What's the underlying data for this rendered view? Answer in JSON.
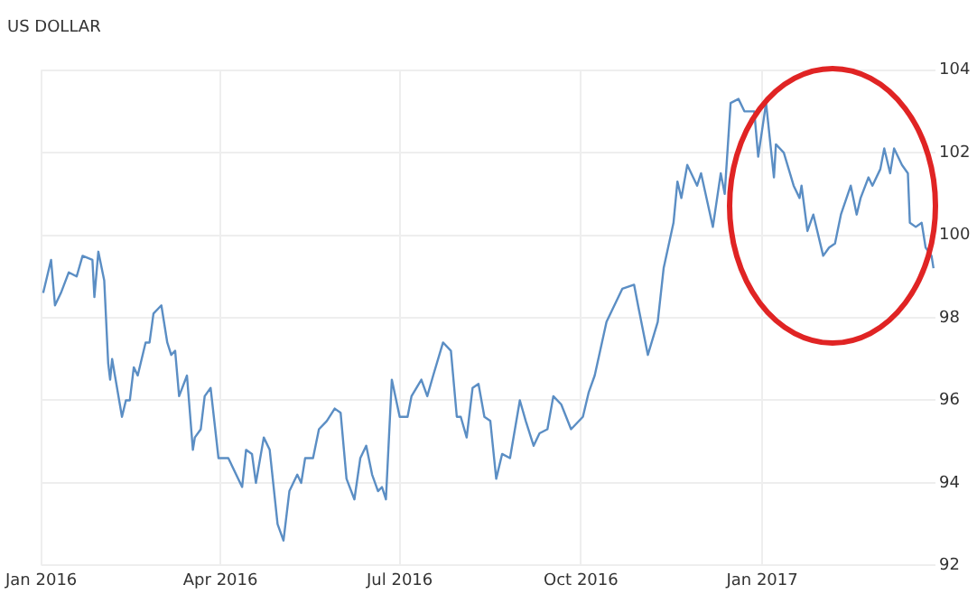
{
  "chart_data": {
    "type": "line",
    "title": "US DOLLAR",
    "x": [
      "2016-01-02",
      "2016-01-06",
      "2016-01-08",
      "2016-01-11",
      "2016-01-15",
      "2016-01-19",
      "2016-01-22",
      "2016-01-27",
      "2016-01-28",
      "2016-01-30",
      "2016-02-02",
      "2016-02-04",
      "2016-02-05",
      "2016-02-06",
      "2016-02-11",
      "2016-02-13",
      "2016-02-15",
      "2016-02-17",
      "2016-02-19",
      "2016-02-23",
      "2016-02-25",
      "2016-02-27",
      "2016-03-02",
      "2016-03-05",
      "2016-03-07",
      "2016-03-09",
      "2016-03-11",
      "2016-03-15",
      "2016-03-18",
      "2016-03-19",
      "2016-03-22",
      "2016-03-24",
      "2016-03-27",
      "2016-03-31",
      "2016-04-05",
      "2016-04-12",
      "2016-04-14",
      "2016-04-17",
      "2016-04-19",
      "2016-04-23",
      "2016-04-26",
      "2016-04-30",
      "2016-05-03",
      "2016-05-06",
      "2016-05-10",
      "2016-05-12",
      "2016-05-14",
      "2016-05-18",
      "2016-05-21",
      "2016-05-25",
      "2016-05-29",
      "2016-06-01",
      "2016-06-04",
      "2016-06-08",
      "2016-06-11",
      "2016-06-14",
      "2016-06-17",
      "2016-06-20",
      "2016-06-22",
      "2016-06-24",
      "2016-06-27",
      "2016-07-01",
      "2016-07-05",
      "2016-07-07",
      "2016-07-12",
      "2016-07-15",
      "2016-07-18",
      "2016-07-23",
      "2016-07-27",
      "2016-07-30",
      "2016-08-01",
      "2016-08-04",
      "2016-08-07",
      "2016-08-10",
      "2016-08-13",
      "2016-08-16",
      "2016-08-19",
      "2016-08-22",
      "2016-08-26",
      "2016-08-31",
      "2016-09-03",
      "2016-09-07",
      "2016-09-10",
      "2016-09-14",
      "2016-09-17",
      "2016-09-21",
      "2016-09-26",
      "2016-10-02",
      "2016-10-05",
      "2016-10-08",
      "2016-10-14",
      "2016-10-22",
      "2016-10-28",
      "2016-10-30",
      "2016-11-04",
      "2016-11-09",
      "2016-11-12",
      "2016-11-17",
      "2016-11-19",
      "2016-11-21",
      "2016-11-24",
      "2016-11-29",
      "2016-12-01",
      "2016-12-07",
      "2016-12-11",
      "2016-12-13",
      "2016-12-16",
      "2016-12-20",
      "2016-12-23",
      "2016-12-28",
      "2016-12-30",
      "2017-01-03",
      "2017-01-07",
      "2017-01-08",
      "2017-01-12",
      "2017-01-17",
      "2017-01-20",
      "2017-01-21",
      "2017-01-24",
      "2017-01-27",
      "2017-02-01",
      "2017-02-04",
      "2017-02-07",
      "2017-02-10",
      "2017-02-15",
      "2017-02-18",
      "2017-02-20",
      "2017-02-24",
      "2017-02-26",
      "2017-03-02",
      "2017-03-04",
      "2017-03-07",
      "2017-03-09",
      "2017-03-13",
      "2017-03-16",
      "2017-03-17",
      "2017-03-20",
      "2017-03-23",
      "2017-03-25",
      "2017-03-28",
      "2017-03-29"
    ],
    "series": [
      {
        "color": "#5b8ec4",
        "values": [
          98.6,
          99.4,
          98.3,
          98.6,
          99.1,
          99.0,
          99.5,
          99.4,
          98.5,
          99.6,
          98.9,
          96.9,
          96.5,
          97.0,
          95.6,
          96.0,
          96.0,
          96.8,
          96.6,
          97.4,
          97.4,
          98.1,
          98.3,
          97.4,
          97.1,
          97.2,
          96.1,
          96.6,
          94.8,
          95.1,
          95.3,
          96.1,
          96.3,
          94.6,
          94.6,
          93.9,
          94.8,
          94.7,
          94.0,
          95.1,
          94.8,
          93.0,
          92.6,
          93.8,
          94.2,
          94.0,
          94.6,
          94.6,
          95.3,
          95.5,
          95.8,
          95.7,
          94.1,
          93.6,
          94.6,
          94.9,
          94.2,
          93.8,
          93.9,
          93.6,
          96.5,
          95.6,
          95.6,
          96.1,
          96.5,
          96.1,
          96.6,
          97.4,
          97.2,
          95.6,
          95.6,
          95.1,
          96.3,
          96.4,
          95.6,
          95.5,
          94.1,
          94.7,
          94.6,
          96.0,
          95.5,
          94.9,
          95.2,
          95.3,
          96.1,
          95.9,
          95.3,
          95.6,
          96.2,
          96.6,
          97.9,
          98.7,
          98.8,
          98.3,
          97.1,
          97.9,
          99.2,
          100.3,
          101.3,
          100.9,
          101.7,
          101.2,
          101.5,
          100.2,
          101.5,
          101.0,
          103.2,
          103.3,
          103.0,
          103.0,
          101.9,
          103.2,
          101.4,
          102.2,
          102.0,
          101.2,
          100.9,
          101.2,
          100.1,
          100.5,
          99.5,
          99.7,
          99.8,
          100.5,
          101.2,
          100.5,
          100.9,
          101.4,
          101.2,
          101.6,
          102.1,
          101.5,
          102.1,
          101.7,
          101.5,
          100.3,
          100.2,
          100.3,
          99.7,
          99.5,
          99.2
        ]
      }
    ],
    "xlim": [
      "2016-01-01",
      "2017-03-30"
    ],
    "xticks": [
      {
        "value": "2016-01-01",
        "label": "Jan 2016"
      },
      {
        "value": "2016-04-01",
        "label": "Apr 2016"
      },
      {
        "value": "2016-07-01",
        "label": "Jul 2016"
      },
      {
        "value": "2016-10-01",
        "label": "Oct 2016"
      },
      {
        "value": "2017-01-01",
        "label": "Jan 2017"
      }
    ],
    "ylim": [
      92,
      104
    ],
    "yticks": [
      92,
      94,
      96,
      98,
      100,
      102,
      104
    ],
    "grid": true,
    "legend": false,
    "marker": "none",
    "line_style": "solid"
  }
}
